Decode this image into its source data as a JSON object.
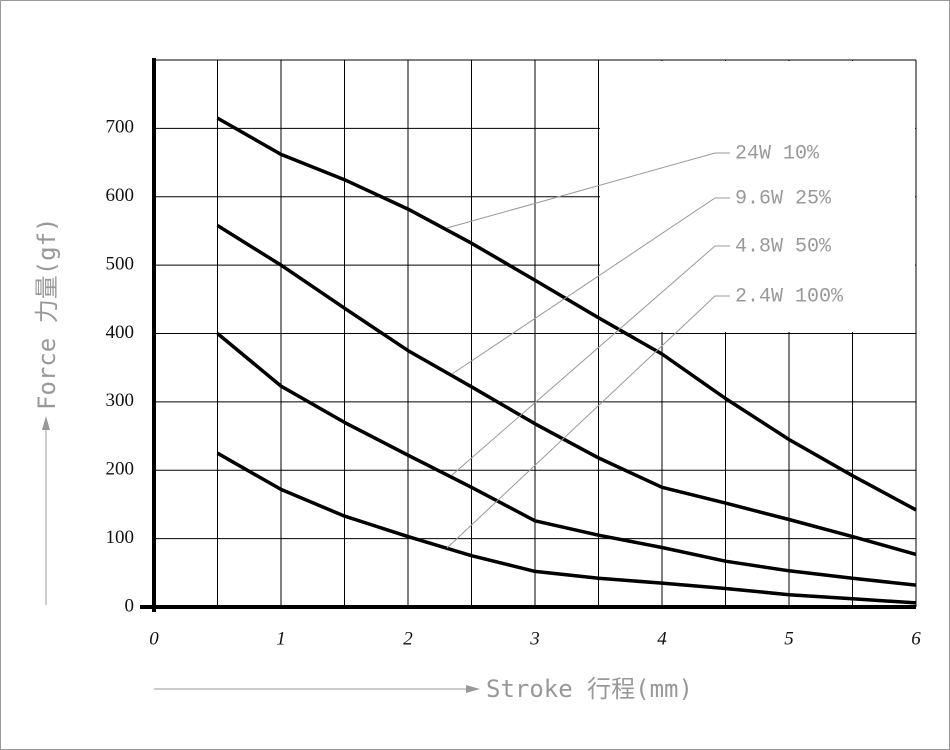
{
  "chart_data": {
    "type": "line",
    "x_label": "Stroke 行程(mm)",
    "y_label": "Force 力量(gf)",
    "x": [
      0.5,
      1,
      1.5,
      2,
      2.5,
      3,
      3.5,
      4,
      4.5,
      5,
      5.5,
      6
    ],
    "series": [
      {
        "name": "24W 10%",
        "color": "#000000",
        "values": [
          715,
          662,
          625,
          582,
          532,
          478,
          423,
          370,
          305,
          245,
          192,
          142
        ]
      },
      {
        "name": "9.6W 25%",
        "color": "#000000",
        "values": [
          558,
          500,
          437,
          375,
          322,
          268,
          218,
          175,
          152,
          128,
          103,
          77
        ]
      },
      {
        "name": "4.8W 50%",
        "color": "#000000",
        "values": [
          400,
          323,
          270,
          222,
          175,
          126,
          105,
          87,
          67,
          53,
          42,
          32
        ]
      },
      {
        "name": "2.4W 100%",
        "color": "#000000",
        "values": [
          225,
          172,
          133,
          103,
          75,
          52,
          42,
          35,
          27,
          18,
          12,
          6
        ]
      }
    ],
    "xlim": [
      0,
      6
    ],
    "xticks": [
      0,
      1,
      2,
      3,
      4,
      5,
      6
    ],
    "ylim": [
      0,
      800
    ],
    "yticks": [
      0,
      100,
      200,
      300,
      400,
      500,
      600,
      700
    ],
    "grid": true
  }
}
